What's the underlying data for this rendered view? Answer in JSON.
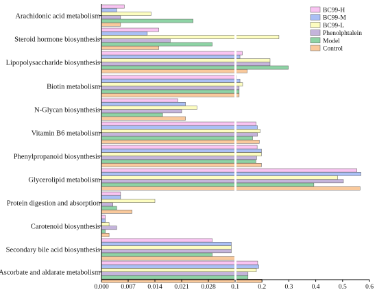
{
  "chart_data": {
    "type": "bar",
    "orientation": "horizontal",
    "x_axis_break": {
      "break_value": 0.035,
      "resume_value": 0.1
    },
    "x_ticks_left": [
      "0.000",
      "0.007",
      "0.014",
      "0.021",
      "0.028"
    ],
    "x_ticks_right": [
      "0.1",
      "0.2",
      "0.3",
      "0.4",
      "0.5",
      "0.6"
    ],
    "xlim": [
      0,
      0.6
    ],
    "grid": false,
    "legend_position": "top-right",
    "categories": [
      "Arachidonic acid metabolism",
      "Steroid hormone biosynthesis",
      "Lipopolysaccharide biosynthesis",
      "Biotin metabolism",
      "N-Glycan biosynthesis",
      "Vitamin B6 metabolism",
      "Phenylpropanoid biosynthesis",
      "Glycerolipid metabolism",
      "Protein digestion and absorption",
      "Carotenoid biosynthesis",
      "Secondary bile acid biosynthesis",
      "Ascorbate and aldarate metabolism"
    ],
    "series": [
      {
        "name": "BC99-H",
        "color": "#f9c4f2",
        "values": [
          0.006,
          0.015,
          0.127,
          0.105,
          0.02,
          0.178,
          0.182,
          0.553,
          0.005,
          0.001,
          0.029,
          0.184
        ]
      },
      {
        "name": "BC99-M",
        "color": "#aabff5",
        "values": [
          0.004,
          0.012,
          0.118,
          0.118,
          0.022,
          0.183,
          0.198,
          0.568,
          0.005,
          0.001,
          0.034,
          0.188
        ]
      },
      {
        "name": "BC99-L",
        "color": "#fdfdc0",
        "values": [
          0.013,
          0.263,
          0.23,
          0.128,
          0.025,
          0.193,
          0.198,
          0.482,
          0.014,
          0.002,
          0.034,
          0.179
        ]
      },
      {
        "name": "Phenolphtalein",
        "color": "#c4b4db",
        "values": [
          0.005,
          0.018,
          0.23,
          0.115,
          0.021,
          0.183,
          0.18,
          0.503,
          0.003,
          0.004,
          0.034,
          0.148
        ]
      },
      {
        "name": "Model",
        "color": "#8ed3a5",
        "values": [
          0.024,
          0.029,
          0.298,
          0.115,
          0.016,
          0.165,
          0.177,
          0.393,
          0.004,
          0.001,
          0.029,
          0.148
        ]
      },
      {
        "name": "Control",
        "color": "#f9c99c",
        "values": [
          0.005,
          0.015,
          0.145,
          0.115,
          0.022,
          0.19,
          0.198,
          0.565,
          0.008,
          0.002,
          0.035,
          0.2
        ]
      }
    ]
  }
}
